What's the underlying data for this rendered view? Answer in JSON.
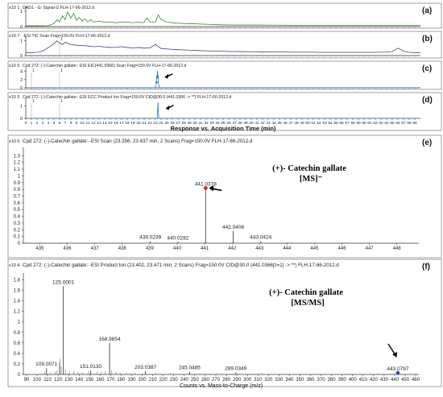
{
  "chart_data": [
    {
      "id": "a",
      "type": "line",
      "panel_label": "(a)",
      "header": "DAD1 - G: Signal G FLH-17-66-2012.d",
      "exponent": "x10 1",
      "ylim": [
        0,
        1.2
      ],
      "yticks": [
        0,
        1
      ],
      "xlim": [
        0,
        70
      ],
      "color": "#2e8b2e",
      "series": [
        {
          "x": [
            0,
            2,
            4,
            5,
            5.6,
            6,
            6.5,
            7,
            7.4,
            8,
            8.5,
            9,
            9.5,
            10,
            10.5,
            11,
            11.5,
            12,
            13,
            14,
            15,
            16,
            17,
            18,
            19,
            20,
            20.5,
            21,
            21.5,
            22,
            23,
            23.5,
            24,
            25,
            26,
            27,
            28,
            30,
            32,
            34,
            36,
            38,
            40,
            45,
            50,
            55,
            60,
            65,
            68,
            70
          ],
          "y": [
            0.05,
            0.05,
            0.06,
            0.2,
            0.45,
            0.3,
            0.7,
            0.45,
            0.95,
            0.55,
            0.85,
            0.4,
            0.6,
            0.35,
            0.5,
            0.3,
            0.45,
            0.3,
            0.35,
            0.28,
            0.3,
            0.25,
            0.28,
            0.3,
            0.25,
            0.3,
            0.25,
            0.28,
            0.55,
            0.3,
            0.3,
            0.75,
            0.45,
            0.3,
            0.25,
            0.22,
            0.2,
            0.18,
            0.15,
            0.12,
            0.1,
            0.1,
            0.1,
            0.09,
            0.08,
            0.08,
            0.08,
            0.07,
            0.07,
            0.07
          ]
        }
      ]
    },
    {
      "id": "b",
      "type": "line",
      "panel_label": "(b)",
      "header": "-ESI TIC Scan Frag=150.0V FLH-17-66-2012.d",
      "exponent": "x10 7",
      "ylim": [
        0,
        1.2
      ],
      "yticks": [
        0,
        1
      ],
      "xlim": [
        0,
        70
      ],
      "color": "#3a3aa8",
      "series": [
        {
          "x": [
            0,
            1,
            2,
            3,
            4,
            5,
            5.5,
            6,
            6.5,
            7,
            8,
            9,
            10,
            11,
            12,
            13,
            14,
            15,
            16,
            17,
            18,
            19,
            20,
            21,
            22,
            23,
            24,
            25,
            26,
            27,
            28,
            29,
            30,
            32,
            34,
            36,
            38,
            40,
            42,
            44,
            46,
            48,
            50,
            52,
            54,
            56,
            58,
            60,
            62,
            64,
            65,
            66,
            67,
            68,
            69,
            70
          ],
          "y": [
            0.2,
            0.2,
            0.22,
            0.3,
            0.55,
            0.8,
            1.0,
            0.85,
            0.75,
            0.9,
            0.75,
            0.7,
            0.68,
            0.65,
            0.6,
            0.62,
            0.58,
            0.55,
            0.56,
            0.6,
            0.55,
            0.52,
            0.55,
            0.5,
            0.52,
            0.75,
            0.48,
            0.45,
            0.42,
            0.4,
            0.38,
            0.36,
            0.35,
            0.32,
            0.3,
            0.28,
            0.27,
            0.26,
            0.25,
            0.24,
            0.24,
            0.23,
            0.23,
            0.22,
            0.22,
            0.22,
            0.22,
            0.22,
            0.22,
            0.24,
            0.28,
            0.5,
            0.3,
            0.22,
            0.2,
            0.2
          ]
        }
      ],
      "annotations": [
        {
          "x": 6,
          "y": 1.05,
          "text": "1"
        }
      ]
    },
    {
      "id": "c",
      "type": "line",
      "panel_label": "(c)",
      "header": "Cpd 272: (-)-Catechin gallate: -ESI EIC(441.0366) Scan Frag=150.0V FLH-17-66-2012.d",
      "exponent": "x10 5",
      "ylim": [
        0,
        4.5
      ],
      "yticks": [
        0,
        2,
        4
      ],
      "xlim": [
        0,
        70
      ],
      "color": "#1a7fd0",
      "series": [
        {
          "x": [
            0,
            22.9,
            23.1,
            23.2,
            23.3,
            23.356,
            23.42,
            23.5,
            23.6,
            23.8,
            70
          ],
          "y": [
            0,
            0,
            0.6,
            1.8,
            3.2,
            4.1,
            3.0,
            1.6,
            0.5,
            0,
            0
          ]
        }
      ],
      "annotations": [
        {
          "x": 1,
          "y": 3.9,
          "text": "1"
        },
        {
          "x": 6,
          "y": 3.9,
          "text": "1"
        }
      ],
      "arrow_at": [
        24.6,
        2.6
      ]
    },
    {
      "id": "d",
      "type": "line",
      "panel_label": "(d)",
      "header": "Cpd 272: (-)-Catechin gallate: -ESI ECC Product Ion Frag=150.0V CID@30.0 (441.0366 -> **) FLH-17-66-2012.d",
      "exponent": "x10 5",
      "ylim": [
        0,
        1.5
      ],
      "yticks": [
        0,
        1
      ],
      "xlim": [
        0,
        70
      ],
      "color": "#1a7fd0",
      "series": [
        {
          "x": [
            0,
            23.3,
            23.4,
            23.45,
            23.5,
            23.6,
            70
          ],
          "y": [
            0,
            0,
            0.8,
            1.3,
            0.7,
            0,
            0
          ]
        }
      ],
      "annotations": [
        {
          "x": 1,
          "y": 1.3,
          "text": "1"
        },
        {
          "x": 6,
          "y": 1.3,
          "text": "1"
        }
      ],
      "arrow_at": [
        24.8,
        0.8
      ],
      "xticks": [
        0,
        1,
        2,
        3,
        4,
        5,
        6,
        7,
        8,
        9,
        10,
        11,
        12,
        13,
        14,
        15,
        16,
        17,
        18,
        19,
        20,
        21,
        22,
        23,
        24,
        25,
        26,
        27,
        28,
        29,
        30,
        31,
        32,
        33,
        34,
        35,
        36,
        37,
        38,
        39,
        40,
        41,
        42,
        43,
        44,
        45,
        46,
        47,
        48,
        49,
        50,
        51,
        52,
        53,
        54,
        55,
        56,
        57,
        58,
        59,
        60,
        61,
        62,
        63,
        64,
        65,
        66,
        67,
        68,
        69
      ],
      "xlabel": "Response vs. Acquisition Time (min)"
    },
    {
      "id": "e",
      "type": "bar",
      "panel_label": "(e)",
      "header": "Cpd 272: (-)-Catechin gallate: -ESI Scan (23.356, 23.437 min, 2 Scans) Frag=150.0V FLH-17-66-2012.d",
      "exponent": "x10 6",
      "xlim": [
        434.4,
        448.8
      ],
      "ylim": [
        0,
        1.4
      ],
      "yticks": [
        0,
        0.1,
        0.2,
        0.3,
        0.4,
        0.5,
        0.6,
        0.7,
        0.8,
        0.9,
        1,
        1.1,
        1.2,
        1.3
      ],
      "xticks": [
        435,
        436,
        437,
        438,
        439,
        440,
        441,
        442,
        443,
        444,
        445,
        446,
        447,
        448
      ],
      "peaks": [
        {
          "mz": 439.0239,
          "value": 0.03,
          "label": "439.0239"
        },
        {
          "mz": 440.0282,
          "value": 0.02,
          "label": "440.0282"
        },
        {
          "mz": 441.0378,
          "value": 0.82,
          "label": "441.0378"
        },
        {
          "mz": 442.0406,
          "value": 0.18,
          "label": "442.0406"
        },
        {
          "mz": 443.0424,
          "value": 0.03,
          "label": "443.0424"
        }
      ],
      "annotation_lines": [
        "(+)- Catechin gallate",
        "[MS]⁻"
      ]
    },
    {
      "id": "f",
      "type": "bar",
      "panel_label": "(f)",
      "header": "Cpd 272: (-)-Catechin gallate: -ESI Product Ion (23.402, 23.471 min, 2 Scans) Frag=150.0V CID@30.0 (441.0366[z=1] -> **) FLH-17-66-2012.d",
      "exponent": "x10 4",
      "xlim": [
        87,
        463
      ],
      "ylim": [
        0,
        1.9
      ],
      "yticks": [
        0,
        0.2,
        0.4,
        0.6,
        0.8,
        1,
        1.2,
        1.4,
        1.6,
        1.8
      ],
      "xticks": [
        90,
        100,
        110,
        120,
        130,
        140,
        150,
        160,
        170,
        180,
        190,
        200,
        210,
        220,
        230,
        240,
        250,
        260,
        270,
        280,
        290,
        300,
        310,
        320,
        330,
        340,
        350,
        360,
        370,
        380,
        390,
        400,
        410,
        420,
        430,
        440,
        450,
        460
      ],
      "xlabel": "Counts vs. Mass-to-Charge (m/z)",
      "peaks": [
        {
          "mz": 109.0071,
          "value": 0.12,
          "label": "109.0071"
        },
        {
          "mz": 125.0001,
          "value": 1.68,
          "label": "125.0001"
        },
        {
          "mz": 151.013,
          "value": 0.08,
          "label": "151.0130"
        },
        {
          "mz": 168.9854,
          "value": 0.6,
          "label": "168.9854"
        },
        {
          "mz": 203.0387,
          "value": 0.06,
          "label": "203.0387"
        },
        {
          "mz": 245.0485,
          "value": 0.05,
          "label": "245.0485"
        },
        {
          "mz": 289.0349,
          "value": 0.04,
          "label": "289.0349"
        },
        {
          "mz": 443.0797,
          "value": 0.03,
          "label": "443.0797"
        }
      ],
      "minor_peaks": [
        {
          "mz": 107,
          "value": 0.05
        },
        {
          "mz": 113,
          "value": 0.04
        },
        {
          "mz": 117,
          "value": 0.06
        },
        {
          "mz": 119,
          "value": 0.08
        },
        {
          "mz": 121,
          "value": 0.22
        },
        {
          "mz": 122,
          "value": 0.3
        },
        {
          "mz": 123,
          "value": 0.15
        },
        {
          "mz": 127,
          "value": 0.1
        },
        {
          "mz": 131,
          "value": 0.05
        },
        {
          "mz": 135,
          "value": 0.06
        },
        {
          "mz": 139,
          "value": 0.05
        },
        {
          "mz": 143,
          "value": 0.04
        },
        {
          "mz": 149,
          "value": 0.06
        },
        {
          "mz": 157,
          "value": 0.05
        },
        {
          "mz": 161,
          "value": 0.04
        },
        {
          "mz": 165,
          "value": 0.07
        },
        {
          "mz": 171,
          "value": 0.08
        },
        {
          "mz": 175,
          "value": 0.05
        },
        {
          "mz": 179,
          "value": 0.04
        },
        {
          "mz": 185,
          "value": 0.04
        },
        {
          "mz": 193,
          "value": 0.03
        },
        {
          "mz": 213,
          "value": 0.03
        },
        {
          "mz": 227,
          "value": 0.03
        },
        {
          "mz": 259,
          "value": 0.02
        },
        {
          "mz": 271,
          "value": 0.02
        },
        {
          "mz": 313,
          "value": 0.02
        }
      ],
      "annotation_lines": [
        "(+)- Catechin gallate",
        "[MS/MS]"
      ]
    }
  ]
}
